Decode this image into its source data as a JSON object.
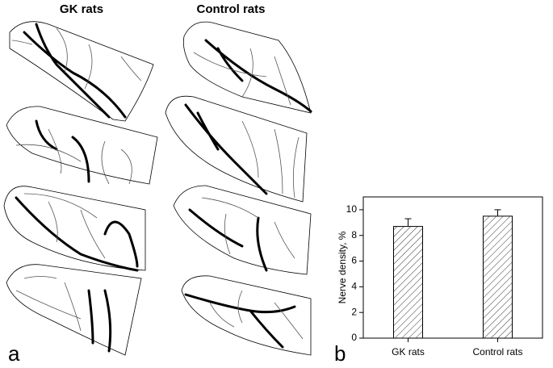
{
  "panel_a": {
    "headers": [
      "GK rats",
      "Control rats"
    ],
    "letter": "a"
  },
  "chart_data": {
    "type": "bar",
    "letter": "b",
    "ylabel": "Nerve density, %",
    "categories": [
      "GK rats",
      "Control rats"
    ],
    "values": [
      8.7,
      9.5
    ],
    "errors": [
      0.6,
      0.5
    ],
    "color": "#ffffff",
    "hatch": true,
    "ylim": [
      0,
      11
    ],
    "yticks": [
      0,
      2,
      4,
      6,
      8,
      10
    ]
  }
}
